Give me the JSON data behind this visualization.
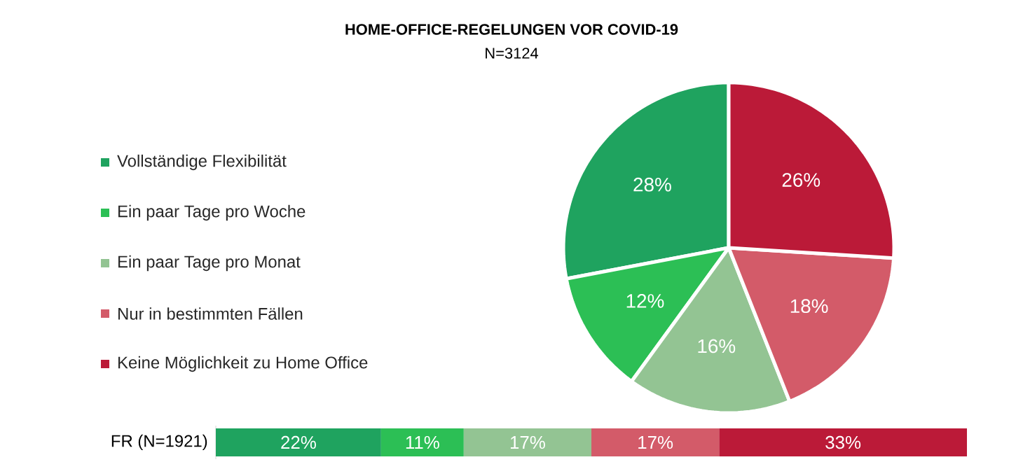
{
  "chart_data": [
    {
      "type": "pie",
      "title": "HOME-OFFICE-REGELUNGEN VOR COVID-19",
      "subtitle": "N=3124",
      "categories": [
        "Vollständige Flexibilität",
        "Ein paar Tage pro Woche",
        "Ein paar Tage pro Monat",
        "Nur in bestimmten Fällen",
        "Keine Möglichkeit zu Home Office"
      ],
      "values": [
        28,
        12,
        16,
        18,
        26
      ],
      "value_labels": [
        "28%",
        "12%",
        "16%",
        "18%",
        "26%"
      ],
      "colors": [
        "#1fa35f",
        "#2cbf55",
        "#93c493",
        "#d35b69",
        "#bb1a38"
      ],
      "legend": "left"
    },
    {
      "type": "bar",
      "stacked": true,
      "orientation": "horizontal",
      "categories": [
        "FR (N=1921)"
      ],
      "series": [
        {
          "color": "#1fa35f",
          "values": [
            22
          ],
          "value_labels": [
            "22%"
          ]
        },
        {
          "color": "#2cbf55",
          "values": [
            11
          ],
          "value_labels": [
            "11%"
          ]
        },
        {
          "color": "#93c493",
          "values": [
            17
          ],
          "value_labels": [
            "17%"
          ]
        },
        {
          "color": "#d35b69",
          "values": [
            17
          ],
          "value_labels": [
            "17%"
          ]
        },
        {
          "color": "#bb1a38",
          "values": [
            33
          ],
          "value_labels": [
            "33%"
          ]
        }
      ]
    }
  ]
}
